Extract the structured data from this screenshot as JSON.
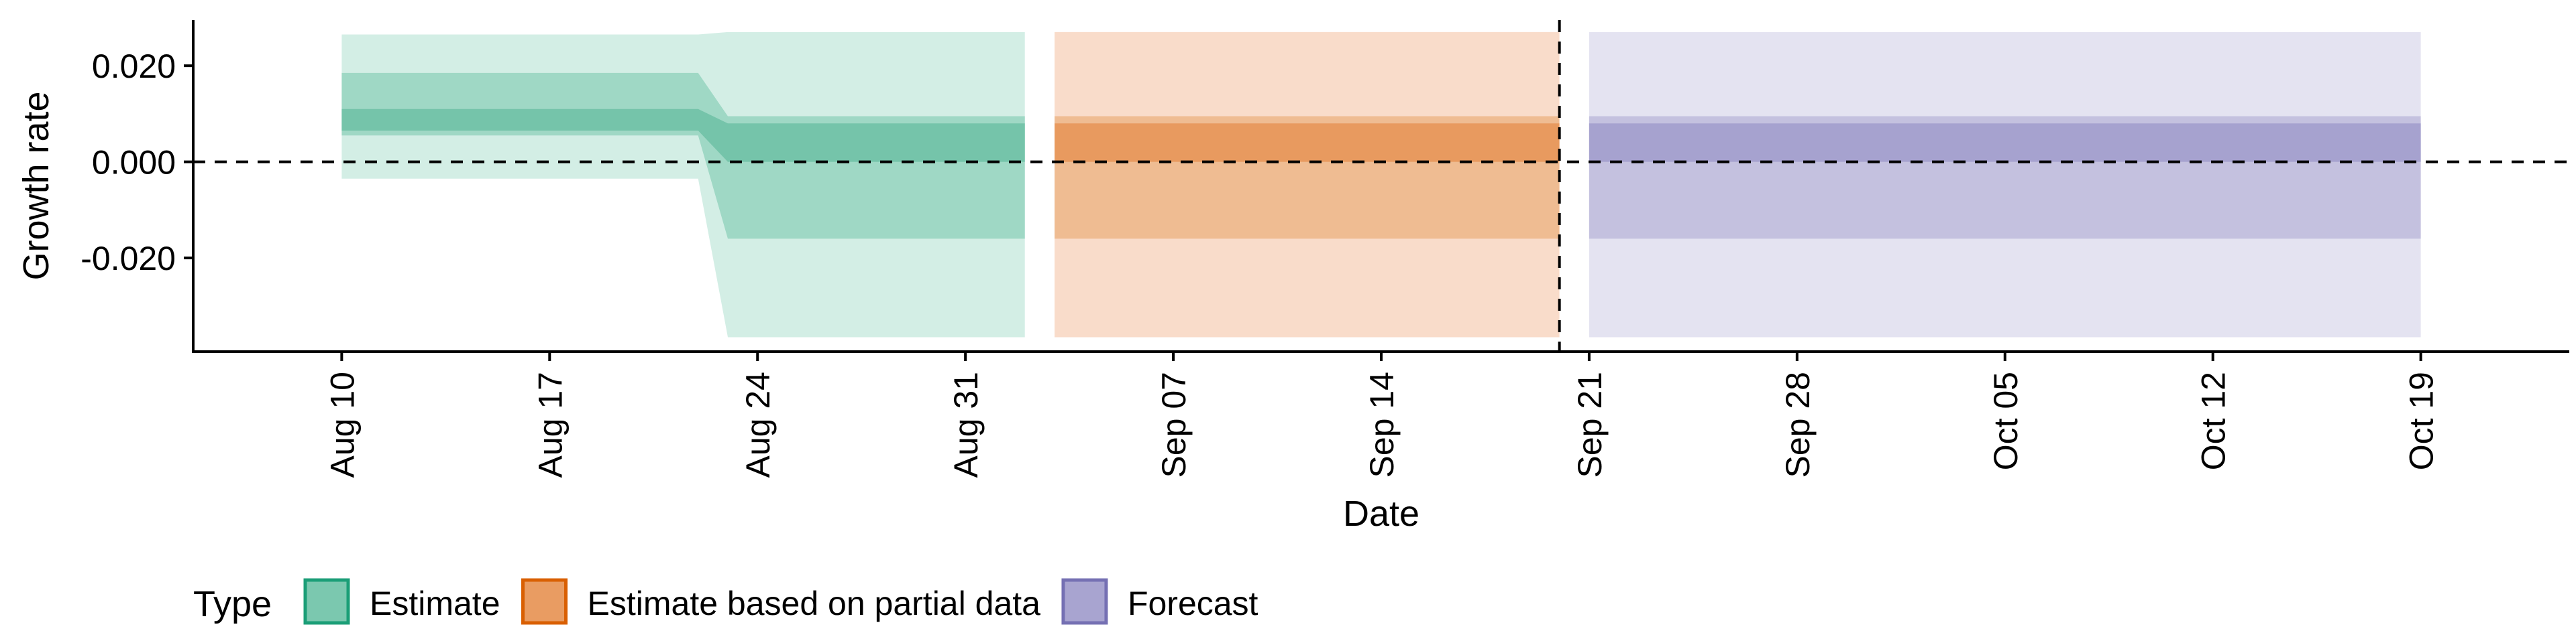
{
  "chart_data": {
    "type": "area",
    "xlabel": "Date",
    "ylabel": "Growth rate",
    "x_range": [
      "2020-08-05",
      "2020-10-24"
    ],
    "y_range": [
      -0.0395,
      0.0295
    ],
    "x_ticks": [
      {
        "date": "2020-08-10",
        "label": "Aug 10"
      },
      {
        "date": "2020-08-17",
        "label": "Aug 17"
      },
      {
        "date": "2020-08-24",
        "label": "Aug 24"
      },
      {
        "date": "2020-08-31",
        "label": "Aug 31"
      },
      {
        "date": "2020-09-07",
        "label": "Sep 07"
      },
      {
        "date": "2020-09-14",
        "label": "Sep 14"
      },
      {
        "date": "2020-09-21",
        "label": "Sep 21"
      },
      {
        "date": "2020-09-28",
        "label": "Sep 28"
      },
      {
        "date": "2020-10-05",
        "label": "Oct 05"
      },
      {
        "date": "2020-10-12",
        "label": "Oct 12"
      },
      {
        "date": "2020-10-19",
        "label": "Oct 19"
      }
    ],
    "y_ticks": [
      {
        "value": 0.02,
        "label": "0.020"
      },
      {
        "value": 0.0,
        "label": "0.000"
      },
      {
        "value": -0.02,
        "label": "-0.020"
      }
    ],
    "reference_lines": {
      "horizontal_y": 0.0,
      "vertical_date": "2020-09-20",
      "style": "dashed"
    },
    "legend": {
      "title": "Type",
      "placement": "bottom-left",
      "items": [
        {
          "label": "Estimate",
          "fill": "#7BC8AF",
          "stroke": "#1B9E77"
        },
        {
          "label": "Estimate based on partial data",
          "fill": "#E99C62",
          "stroke": "#D95F02"
        },
        {
          "label": "Forecast",
          "fill": "#A8A4D0",
          "stroke": "#7570B3"
        }
      ]
    },
    "series": [
      {
        "type_key": "Estimate",
        "colors": {
          "outer": "#D3EEE5",
          "middle": "#9FD8C5",
          "inner": "#75C4AA"
        },
        "points": [
          {
            "date": "2020-08-10",
            "lower_90": -0.0035,
            "upper_90": 0.0265,
            "lower_50": 0.0055,
            "upper_50": 0.0185,
            "lower_20": 0.0065,
            "upper_20": 0.011
          },
          {
            "date": "2020-08-22",
            "lower_90": -0.0035,
            "upper_90": 0.0265,
            "lower_50": 0.0055,
            "upper_50": 0.0185,
            "lower_20": 0.0065,
            "upper_20": 0.011
          },
          {
            "date": "2020-08-23",
            "lower_90": -0.0365,
            "upper_90": 0.027,
            "lower_50": -0.016,
            "upper_50": 0.0095,
            "lower_20": 0.0,
            "upper_20": 0.008
          },
          {
            "date": "2020-09-02",
            "lower_90": -0.0365,
            "upper_90": 0.027,
            "lower_50": -0.016,
            "upper_50": 0.0095,
            "lower_20": 0.0,
            "upper_20": 0.008
          }
        ]
      },
      {
        "type_key": "Estimate based on partial data",
        "colors": {
          "outer": "#F9DCCA",
          "middle": "#EFBC92",
          "inner": "#E89A5F"
        },
        "points": [
          {
            "date": "2020-09-03",
            "lower_90": -0.0365,
            "upper_90": 0.027,
            "lower_50": -0.016,
            "upper_50": 0.0095,
            "lower_20": 0.0,
            "upper_20": 0.008
          },
          {
            "date": "2020-09-20",
            "lower_90": -0.0365,
            "upper_90": 0.027,
            "lower_50": -0.016,
            "upper_50": 0.0095,
            "lower_20": 0.0,
            "upper_20": 0.008
          }
        ]
      },
      {
        "type_key": "Forecast",
        "colors": {
          "outer": "#E4E3F1",
          "middle": "#C4C1DF",
          "inner": "#A6A2CF"
        },
        "points": [
          {
            "date": "2020-09-21",
            "lower_90": -0.0365,
            "upper_90": 0.027,
            "lower_50": -0.016,
            "upper_50": 0.0095,
            "lower_20": 0.0,
            "upper_20": 0.008
          },
          {
            "date": "2020-10-19",
            "lower_90": -0.0365,
            "upper_90": 0.027,
            "lower_50": -0.016,
            "upper_50": 0.0095,
            "lower_20": 0.0,
            "upper_20": 0.008
          }
        ]
      }
    ]
  }
}
